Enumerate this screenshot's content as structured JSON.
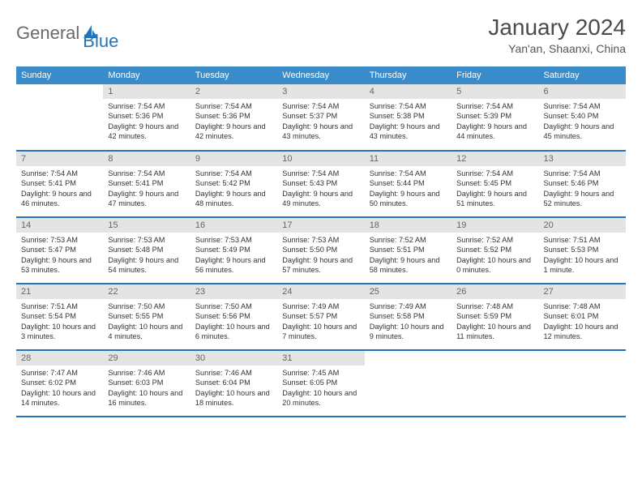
{
  "logo": {
    "text1": "General",
    "text2": "Blue"
  },
  "title": "January 2024",
  "location": "Yan'an, Shaanxi, China",
  "colors": {
    "header_bg": "#3a8bc9",
    "border": "#2574b8",
    "daynum_bg": "#e4e4e4",
    "text": "#333333",
    "title": "#4a4a4a"
  },
  "weekdays": [
    "Sunday",
    "Monday",
    "Tuesday",
    "Wednesday",
    "Thursday",
    "Friday",
    "Saturday"
  ],
  "grid": {
    "rows": 5,
    "cols": 7,
    "first_day_col": 1,
    "days_in_month": 31
  },
  "days": {
    "1": {
      "sunrise": "7:54 AM",
      "sunset": "5:36 PM",
      "daylight": "9 hours and 42 minutes."
    },
    "2": {
      "sunrise": "7:54 AM",
      "sunset": "5:36 PM",
      "daylight": "9 hours and 42 minutes."
    },
    "3": {
      "sunrise": "7:54 AM",
      "sunset": "5:37 PM",
      "daylight": "9 hours and 43 minutes."
    },
    "4": {
      "sunrise": "7:54 AM",
      "sunset": "5:38 PM",
      "daylight": "9 hours and 43 minutes."
    },
    "5": {
      "sunrise": "7:54 AM",
      "sunset": "5:39 PM",
      "daylight": "9 hours and 44 minutes."
    },
    "6": {
      "sunrise": "7:54 AM",
      "sunset": "5:40 PM",
      "daylight": "9 hours and 45 minutes."
    },
    "7": {
      "sunrise": "7:54 AM",
      "sunset": "5:41 PM",
      "daylight": "9 hours and 46 minutes."
    },
    "8": {
      "sunrise": "7:54 AM",
      "sunset": "5:41 PM",
      "daylight": "9 hours and 47 minutes."
    },
    "9": {
      "sunrise": "7:54 AM",
      "sunset": "5:42 PM",
      "daylight": "9 hours and 48 minutes."
    },
    "10": {
      "sunrise": "7:54 AM",
      "sunset": "5:43 PM",
      "daylight": "9 hours and 49 minutes."
    },
    "11": {
      "sunrise": "7:54 AM",
      "sunset": "5:44 PM",
      "daylight": "9 hours and 50 minutes."
    },
    "12": {
      "sunrise": "7:54 AM",
      "sunset": "5:45 PM",
      "daylight": "9 hours and 51 minutes."
    },
    "13": {
      "sunrise": "7:54 AM",
      "sunset": "5:46 PM",
      "daylight": "9 hours and 52 minutes."
    },
    "14": {
      "sunrise": "7:53 AM",
      "sunset": "5:47 PM",
      "daylight": "9 hours and 53 minutes."
    },
    "15": {
      "sunrise": "7:53 AM",
      "sunset": "5:48 PM",
      "daylight": "9 hours and 54 minutes."
    },
    "16": {
      "sunrise": "7:53 AM",
      "sunset": "5:49 PM",
      "daylight": "9 hours and 56 minutes."
    },
    "17": {
      "sunrise": "7:53 AM",
      "sunset": "5:50 PM",
      "daylight": "9 hours and 57 minutes."
    },
    "18": {
      "sunrise": "7:52 AM",
      "sunset": "5:51 PM",
      "daylight": "9 hours and 58 minutes."
    },
    "19": {
      "sunrise": "7:52 AM",
      "sunset": "5:52 PM",
      "daylight": "10 hours and 0 minutes."
    },
    "20": {
      "sunrise": "7:51 AM",
      "sunset": "5:53 PM",
      "daylight": "10 hours and 1 minute."
    },
    "21": {
      "sunrise": "7:51 AM",
      "sunset": "5:54 PM",
      "daylight": "10 hours and 3 minutes."
    },
    "22": {
      "sunrise": "7:50 AM",
      "sunset": "5:55 PM",
      "daylight": "10 hours and 4 minutes."
    },
    "23": {
      "sunrise": "7:50 AM",
      "sunset": "5:56 PM",
      "daylight": "10 hours and 6 minutes."
    },
    "24": {
      "sunrise": "7:49 AM",
      "sunset": "5:57 PM",
      "daylight": "10 hours and 7 minutes."
    },
    "25": {
      "sunrise": "7:49 AM",
      "sunset": "5:58 PM",
      "daylight": "10 hours and 9 minutes."
    },
    "26": {
      "sunrise": "7:48 AM",
      "sunset": "5:59 PM",
      "daylight": "10 hours and 11 minutes."
    },
    "27": {
      "sunrise": "7:48 AM",
      "sunset": "6:01 PM",
      "daylight": "10 hours and 12 minutes."
    },
    "28": {
      "sunrise": "7:47 AM",
      "sunset": "6:02 PM",
      "daylight": "10 hours and 14 minutes."
    },
    "29": {
      "sunrise": "7:46 AM",
      "sunset": "6:03 PM",
      "daylight": "10 hours and 16 minutes."
    },
    "30": {
      "sunrise": "7:46 AM",
      "sunset": "6:04 PM",
      "daylight": "10 hours and 18 minutes."
    },
    "31": {
      "sunrise": "7:45 AM",
      "sunset": "6:05 PM",
      "daylight": "10 hours and 20 minutes."
    }
  },
  "labels": {
    "sunrise": "Sunrise:",
    "sunset": "Sunset:",
    "daylight": "Daylight:"
  }
}
